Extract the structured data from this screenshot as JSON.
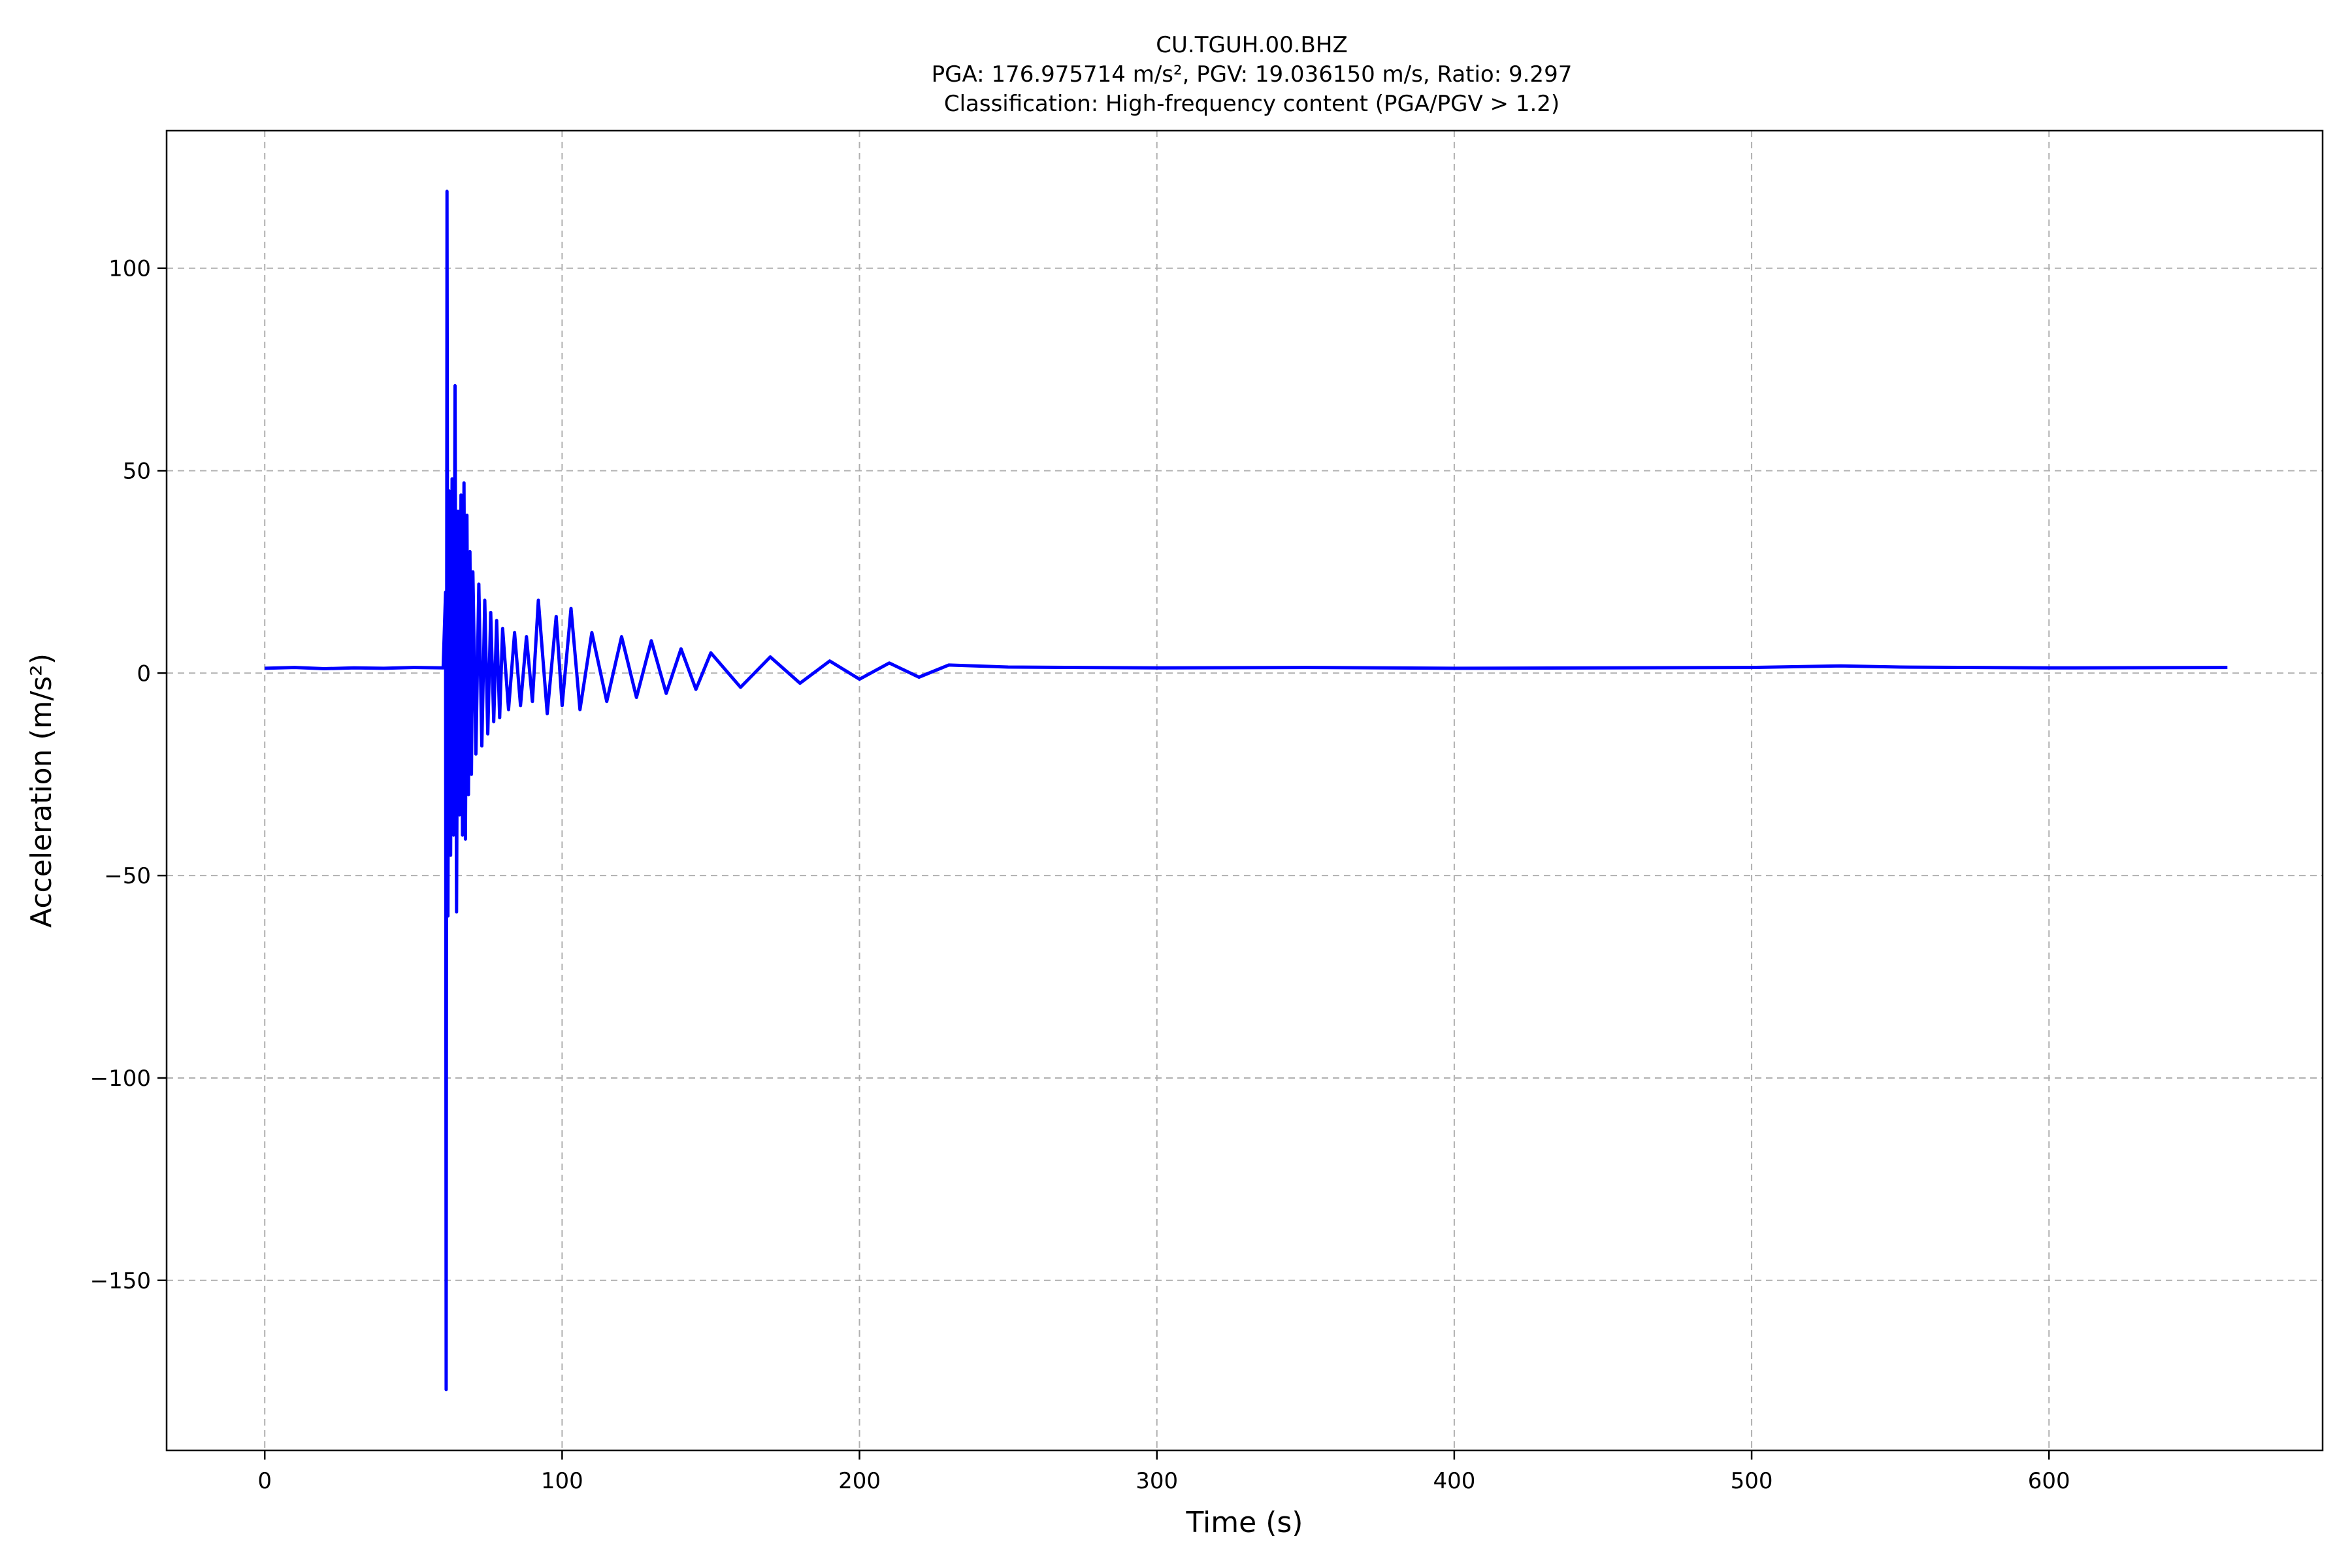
{
  "chart_data": {
    "type": "line",
    "title": "CU.TGUH.00.BHZ",
    "subtitle": "PGA: 176.975714 m/s², PGV: 19.036150 m/s, Ratio: 9.297",
    "subtitle2": "Classification: High-frequency content (PGA/PGV > 1.2)",
    "xlabel": "Time (s)",
    "ylabel": "Acceleration (m/s²)",
    "xlim": [
      -33,
      692
    ],
    "ylim": [
      -192,
      134
    ],
    "xticks": [
      0,
      100,
      200,
      300,
      400,
      500,
      600
    ],
    "yticks": [
      100,
      50,
      0,
      -50,
      -100,
      -150
    ],
    "ytick_labels": [
      "100",
      "50",
      "0",
      "−50",
      "−100",
      "−150"
    ],
    "grid": true,
    "line_color": "#0000ff",
    "series": [
      {
        "values_description_excluded": true,
        "x": [
          0,
          10,
          20,
          30,
          40,
          50,
          60,
          60.8,
          61,
          61.3,
          61.6,
          62,
          62.5,
          63,
          63.5,
          64,
          64.5,
          65,
          65.5,
          66,
          66.5,
          67,
          67.5,
          68,
          68.5,
          69,
          69.5,
          70,
          71,
          72,
          73,
          74,
          75,
          76,
          77,
          78,
          79,
          80,
          82,
          84,
          86,
          88,
          90,
          92,
          95,
          98,
          100,
          103,
          106,
          110,
          115,
          120,
          125,
          130,
          135,
          140,
          145,
          150,
          160,
          170,
          180,
          190,
          200,
          210,
          220,
          230,
          250,
          300,
          350,
          400,
          450,
          500,
          530,
          550,
          600,
          660
        ],
        "values": [
          1.2,
          1.4,
          1.1,
          1.3,
          1.2,
          1.4,
          1.3,
          20,
          -176.98,
          119,
          -60,
          45,
          -45,
          48,
          -40,
          71,
          -59,
          40,
          -35,
          44,
          -40,
          47,
          -41,
          39,
          -30,
          30,
          -25,
          25,
          -20,
          22,
          -18,
          18,
          -15,
          15,
          -12,
          13,
          -11,
          11,
          -9,
          10,
          -8,
          9,
          -7,
          18,
          -10,
          14,
          -8,
          16,
          -9,
          10,
          -7,
          9,
          -6,
          8,
          -5,
          6,
          -4,
          5,
          -3.5,
          4,
          -2.5,
          3,
          -1.5,
          2.5,
          -1,
          2,
          1.5,
          1.3,
          1.4,
          1.2,
          1.3,
          1.4,
          1.8,
          1.5,
          1.3,
          1.4
        ]
      }
    ]
  }
}
